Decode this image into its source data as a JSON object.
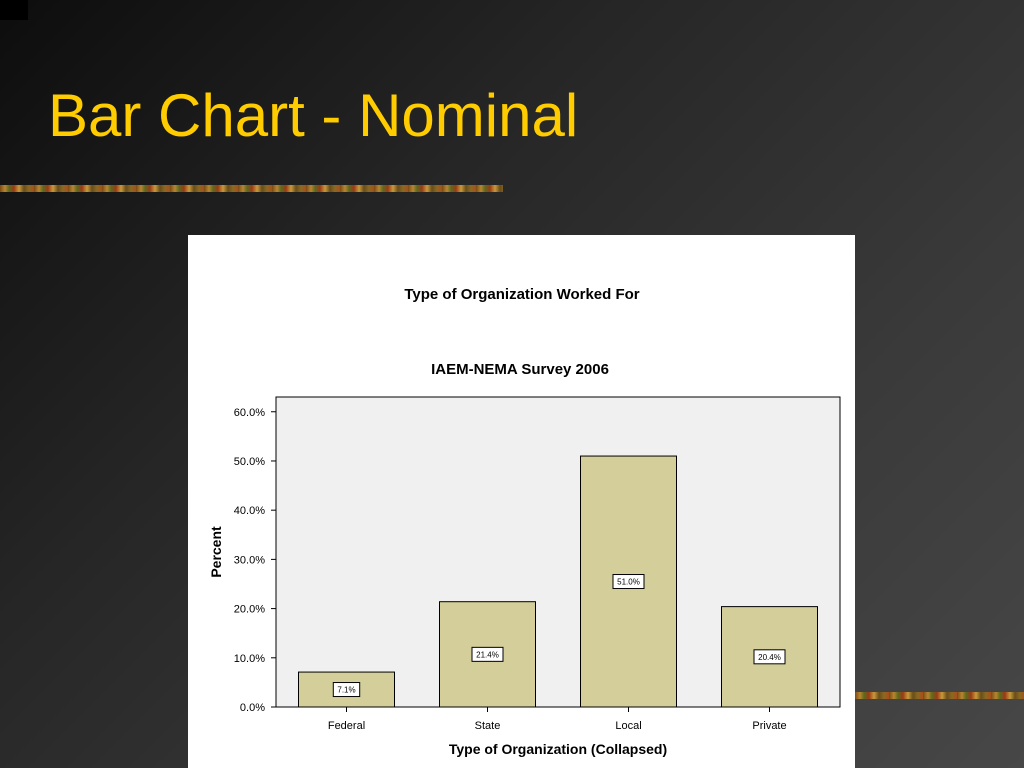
{
  "slide": {
    "title": "Bar Chart - Nominal"
  },
  "colors": {
    "background": "#2e2e2e",
    "title": "#ffcc00",
    "plot_background": "#f0f0f0",
    "bar_fill": "#d4cf9a",
    "bar_stroke": "#000000"
  },
  "chart_data": {
    "type": "bar",
    "title": "Type of Organization Worked For",
    "subtitle": "IAEM-NEMA Survey 2006",
    "xlabel": "Type of Organization (Collapsed)",
    "ylabel": "Percent",
    "categories": [
      "Federal",
      "State",
      "Local",
      "Private"
    ],
    "values": [
      7.1,
      21.4,
      51.0,
      20.4
    ],
    "data_labels": [
      "7.1%",
      "21.4%",
      "51.0%",
      "20.4%"
    ],
    "yticks": [
      0,
      10,
      20,
      30,
      40,
      50,
      60
    ],
    "ytick_labels": [
      "0.0%",
      "10.0%",
      "20.0%",
      "30.0%",
      "40.0%",
      "50.0%",
      "60.0%"
    ],
    "ylim": [
      0,
      63
    ],
    "grid": false,
    "legend": "none"
  }
}
